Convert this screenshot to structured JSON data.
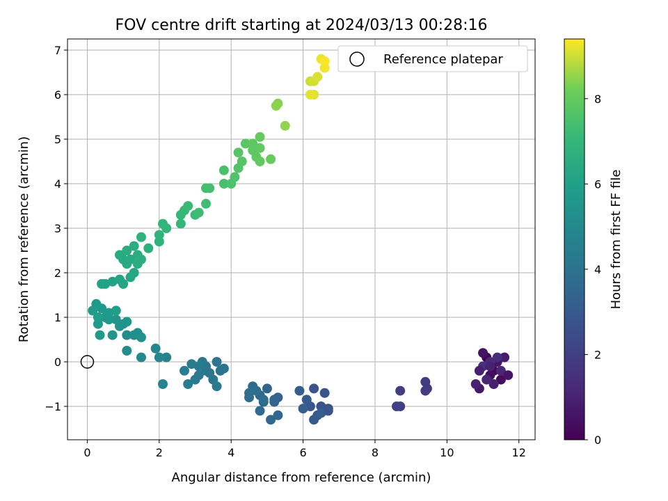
{
  "chart_data": {
    "type": "scatter",
    "title": "FOV centre drift starting at 2024/03/13 00:28:16",
    "xlabel": "Angular distance from reference (arcmin)",
    "ylabel": "Rotation from reference (arcmin)",
    "xlim": [
      -0.55,
      12.45
    ],
    "ylim": [
      -1.75,
      7.25
    ],
    "xticks": [
      "0",
      "2",
      "4",
      "6",
      "8",
      "10",
      "12"
    ],
    "yticks": [
      "−1",
      "0",
      "1",
      "2",
      "3",
      "4",
      "5",
      "6",
      "7"
    ],
    "grid": true,
    "legend": {
      "placement": "upper right",
      "entries": [
        "Reference platepar"
      ]
    },
    "reference_point": {
      "x": 0,
      "y": 0,
      "marker": "open-circle"
    },
    "colorbar": {
      "label": "Hours from first FF file",
      "colormap": "viridis",
      "range": [
        0,
        9.4
      ],
      "ticks": [
        "0",
        "2",
        "4",
        "6",
        "8"
      ]
    },
    "points": [
      [
        11.1,
        0.1,
        0.1
      ],
      [
        11.3,
        -0.2,
        0.2
      ],
      [
        11.5,
        -0.4,
        0.3
      ],
      [
        11.2,
        -0.3,
        0.4
      ],
      [
        11.0,
        0.2,
        0.5
      ],
      [
        11.4,
        0.0,
        0.6
      ],
      [
        10.9,
        -0.6,
        0.7
      ],
      [
        11.6,
        0.1,
        0.8
      ],
      [
        11.3,
        -0.5,
        0.9
      ],
      [
        10.8,
        -0.5,
        1.0
      ],
      [
        11.1,
        -0.4,
        1.1
      ],
      [
        11.5,
        -0.2,
        1.2
      ],
      [
        11.2,
        0.0,
        1.3
      ],
      [
        11.4,
        0.1,
        1.4
      ],
      [
        11.0,
        -0.1,
        1.5
      ],
      [
        11.7,
        -0.3,
        0.6
      ],
      [
        10.9,
        -0.2,
        0.9
      ],
      [
        11.2,
        -0.1,
        1.0
      ],
      [
        9.4,
        -0.45,
        1.8
      ],
      [
        9.45,
        -0.6,
        1.85
      ],
      [
        9.4,
        -0.65,
        1.9
      ],
      [
        8.7,
        -0.65,
        1.95
      ],
      [
        8.7,
        -1.0,
        2.0
      ],
      [
        8.6,
        -1.0,
        2.05
      ],
      [
        6.7,
        -1.05,
        2.7
      ],
      [
        6.5,
        -1.0,
        2.75
      ],
      [
        6.3,
        -0.6,
        2.8
      ],
      [
        6.6,
        -0.7,
        2.85
      ],
      [
        6.2,
        -1.0,
        2.9
      ],
      [
        6.4,
        -1.2,
        2.95
      ],
      [
        6.3,
        -1.3,
        3.0
      ],
      [
        6.1,
        -0.85,
        3.05
      ],
      [
        5.9,
        -0.65,
        3.1
      ],
      [
        6.0,
        -1.05,
        3.15
      ],
      [
        6.5,
        -1.15,
        3.2
      ],
      [
        6.7,
        -1.1,
        2.8
      ],
      [
        5.3,
        -0.8,
        3.25
      ],
      [
        5.2,
        -0.9,
        3.3
      ],
      [
        5.0,
        -0.6,
        3.35
      ],
      [
        4.8,
        -0.75,
        3.4
      ],
      [
        4.9,
        -0.9,
        3.45
      ],
      [
        5.3,
        -1.2,
        3.5
      ],
      [
        5.1,
        -1.3,
        3.55
      ],
      [
        4.8,
        -1.1,
        3.6
      ],
      [
        4.6,
        -0.55,
        3.65
      ],
      [
        4.5,
        -0.8,
        3.7
      ],
      [
        4.7,
        -0.65,
        3.75
      ],
      [
        4.9,
        -0.85,
        3.8
      ],
      [
        4.5,
        -0.7,
        3.85
      ],
      [
        5.2,
        -0.85,
        3.4
      ],
      [
        3.8,
        -0.15,
        4.0
      ],
      [
        3.7,
        -0.2,
        4.05
      ],
      [
        3.6,
        0.0,
        4.1
      ],
      [
        3.5,
        -0.4,
        4.15
      ],
      [
        3.3,
        -0.1,
        4.2
      ],
      [
        3.2,
        0.0,
        4.25
      ],
      [
        3.1,
        -0.3,
        4.3
      ],
      [
        3.0,
        -0.4,
        4.35
      ],
      [
        2.9,
        -0.05,
        4.4
      ],
      [
        2.8,
        -0.5,
        4.45
      ],
      [
        2.7,
        -0.2,
        4.5
      ],
      [
        3.4,
        -0.25,
        4.2
      ],
      [
        3.6,
        -0.55,
        4.3
      ],
      [
        3.3,
        -0.2,
        4.1
      ],
      [
        3.1,
        -0.1,
        4.45
      ],
      [
        2.2,
        0.1,
        4.75
      ],
      [
        2.1,
        -0.5,
        4.8
      ],
      [
        2.0,
        0.1,
        4.85
      ],
      [
        1.9,
        0.3,
        4.9
      ],
      [
        1.5,
        0.1,
        5.0
      ],
      [
        1.1,
        0.25,
        5.1
      ],
      [
        1.1,
        0.6,
        5.15
      ],
      [
        1.3,
        0.6,
        5.2
      ],
      [
        1.4,
        0.65,
        5.25
      ],
      [
        1.5,
        0.55,
        5.3
      ],
      [
        1.0,
        0.85,
        5.35
      ],
      [
        0.9,
        0.8,
        5.4
      ],
      [
        0.8,
        0.95,
        5.45
      ],
      [
        0.7,
        0.6,
        5.5
      ],
      [
        0.6,
        0.95,
        5.55
      ],
      [
        0.5,
        1.0,
        5.6
      ],
      [
        0.4,
        1.2,
        5.65
      ],
      [
        0.35,
        0.6,
        5.7
      ],
      [
        0.3,
        0.85,
        5.75
      ],
      [
        0.25,
        1.3,
        5.8
      ],
      [
        0.15,
        1.15,
        5.85
      ],
      [
        0.3,
        1.0,
        5.9
      ],
      [
        0.8,
        1.15,
        5.95
      ],
      [
        0.6,
        1.1,
        5.7
      ],
      [
        1.1,
        0.9,
        5.5
      ],
      [
        0.5,
        1.75,
        6.0
      ],
      [
        0.4,
        1.75,
        6.05
      ],
      [
        0.7,
        1.8,
        6.1
      ],
      [
        0.9,
        1.85,
        6.15
      ],
      [
        1.0,
        1.75,
        6.2
      ],
      [
        1.2,
        1.9,
        6.25
      ],
      [
        1.3,
        2.0,
        6.3
      ],
      [
        1.1,
        2.2,
        6.35
      ],
      [
        1.0,
        2.3,
        6.4
      ],
      [
        0.9,
        2.4,
        6.45
      ],
      [
        1.1,
        2.5,
        6.5
      ],
      [
        1.3,
        2.6,
        6.55
      ],
      [
        1.4,
        2.4,
        6.6
      ],
      [
        1.5,
        2.3,
        6.65
      ],
      [
        1.7,
        2.55,
        6.7
      ],
      [
        1.5,
        2.8,
        6.75
      ],
      [
        2.0,
        2.7,
        6.8
      ],
      [
        2.0,
        2.85,
        6.85
      ],
      [
        2.2,
        3.0,
        6.9
      ],
      [
        2.1,
        3.1,
        6.95
      ],
      [
        1.2,
        2.3,
        6.45
      ],
      [
        1.4,
        2.2,
        6.5
      ],
      [
        2.6,
        3.1,
        7.0
      ],
      [
        2.6,
        3.3,
        7.05
      ],
      [
        2.7,
        3.4,
        7.1
      ],
      [
        2.8,
        3.5,
        7.15
      ],
      [
        3.0,
        3.3,
        7.2
      ],
      [
        3.1,
        3.35,
        7.25
      ],
      [
        3.3,
        3.55,
        7.3
      ],
      [
        3.3,
        3.9,
        7.35
      ],
      [
        3.4,
        3.9,
        7.4
      ],
      [
        3.8,
        4.0,
        7.45
      ],
      [
        3.8,
        4.3,
        7.5
      ],
      [
        4.0,
        4.0,
        7.55
      ],
      [
        4.1,
        4.15,
        7.6
      ],
      [
        4.2,
        4.35,
        7.65
      ],
      [
        4.3,
        4.5,
        7.7
      ],
      [
        4.2,
        4.7,
        7.75
      ],
      [
        4.4,
        4.9,
        7.8
      ],
      [
        4.6,
        4.75,
        7.85
      ],
      [
        4.7,
        4.6,
        7.9
      ],
      [
        4.8,
        4.8,
        7.95
      ],
      [
        4.8,
        5.05,
        8.0
      ],
      [
        5.1,
        4.55,
        8.05
      ],
      [
        4.6,
        4.9,
        7.85
      ],
      [
        4.8,
        4.5,
        7.95
      ],
      [
        5.3,
        5.8,
        8.4
      ],
      [
        5.25,
        5.75,
        8.45
      ],
      [
        5.5,
        5.3,
        8.5
      ],
      [
        6.2,
        6.3,
        9.0
      ],
      [
        6.3,
        6.3,
        9.05
      ],
      [
        6.4,
        6.4,
        9.1
      ],
      [
        6.3,
        6.0,
        9.15
      ],
      [
        6.2,
        6.0,
        9.2
      ],
      [
        6.5,
        6.8,
        9.25
      ],
      [
        6.6,
        6.6,
        9.3
      ],
      [
        6.6,
        6.75,
        9.35
      ]
    ]
  }
}
